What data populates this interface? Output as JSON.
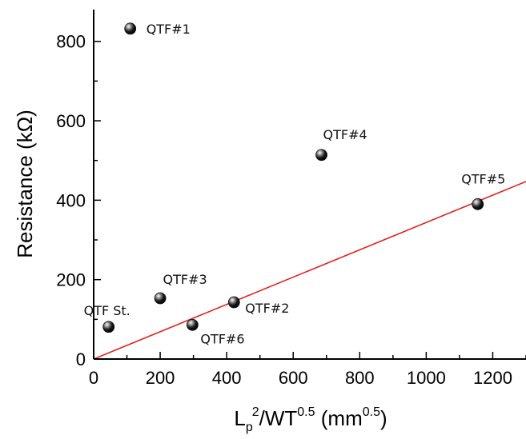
{
  "chart_data": {
    "type": "scatter",
    "title": "",
    "xlabel": {
      "base": "L",
      "sub": "p",
      "sup1": "2",
      "mid": "/WT",
      "sup2": "0.5",
      "unit_open": " (mm",
      "unit_sup": "0.5",
      "unit_close": ")"
    },
    "ylabel": "Resistance (kΩ)",
    "xlim": [
      0,
      1300
    ],
    "ylim": [
      0,
      880
    ],
    "xticks": [
      0,
      200,
      400,
      600,
      800,
      1000,
      1200
    ],
    "yticks": [
      0,
      200,
      400,
      600,
      800
    ],
    "grid": false,
    "points": [
      {
        "label": "QTF#1",
        "x": 110,
        "y": 832
      },
      {
        "label": "QTF#4",
        "x": 685,
        "y": 514
      },
      {
        "label": "QTF#5",
        "x": 1155,
        "y": 390
      },
      {
        "label": "QTF#3",
        "x": 200,
        "y": 153
      },
      {
        "label": "QTF#2",
        "x": 422,
        "y": 143
      },
      {
        "label": "QTF St.",
        "x": 45,
        "y": 81
      },
      {
        "label": "QTF#6",
        "x": 297,
        "y": 86
      }
    ],
    "fit_line": {
      "color": "#e8201f",
      "x": [
        0,
        1300
      ],
      "y": [
        0,
        447
      ]
    },
    "marker_color": "#111111"
  }
}
